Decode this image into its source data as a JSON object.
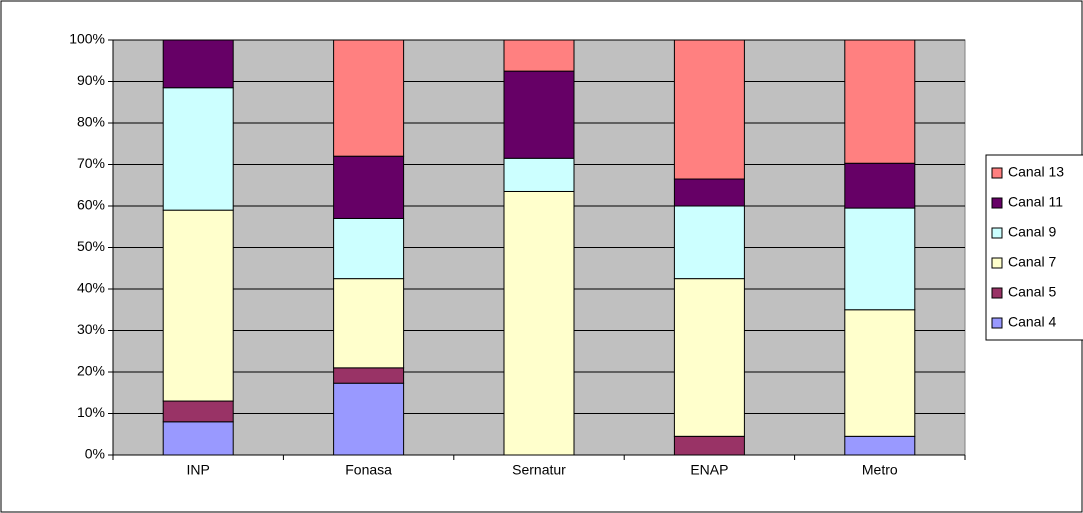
{
  "chart_data": {
    "type": "stacked_bar",
    "categories": [
      "INP",
      "Fonasa",
      "Sernatur",
      "ENAP",
      "Metro"
    ],
    "series": [
      {
        "name": "Canal 4",
        "color": "#9999ff",
        "values": [
          8,
          17.3,
          0,
          0,
          4.5
        ]
      },
      {
        "name": "Canal 5",
        "color": "#993366",
        "values": [
          5,
          3.7,
          0,
          4.5,
          0
        ]
      },
      {
        "name": "Canal 7",
        "color": "#ffffcc",
        "values": [
          46,
          21.5,
          63.5,
          38,
          30.5
        ]
      },
      {
        "name": "Canal 9",
        "color": "#ccffff",
        "values": [
          29.5,
          14.5,
          8,
          17.5,
          24.5
        ]
      },
      {
        "name": "Canal 11",
        "color": "#660066",
        "values": [
          11.5,
          15,
          21,
          6.5,
          10.8
        ]
      },
      {
        "name": "Canal 13",
        "color": "#ff8080",
        "values": [
          0,
          28,
          7.5,
          33.5,
          29.7
        ]
      }
    ],
    "ylim": [
      0,
      100
    ],
    "yticks": [
      {
        "value": 0,
        "label": "0%"
      },
      {
        "value": 10,
        "label": "10%"
      },
      {
        "value": 20,
        "label": "20%"
      },
      {
        "value": 30,
        "label": "30%"
      },
      {
        "value": 40,
        "label": "40%"
      },
      {
        "value": 50,
        "label": "50%"
      },
      {
        "value": 60,
        "label": "60%"
      },
      {
        "value": 70,
        "label": "70%"
      },
      {
        "value": 80,
        "label": "80%"
      },
      {
        "value": 90,
        "label": "90%"
      },
      {
        "value": 100,
        "label": "100%"
      }
    ],
    "grid": true,
    "legend": "right"
  }
}
